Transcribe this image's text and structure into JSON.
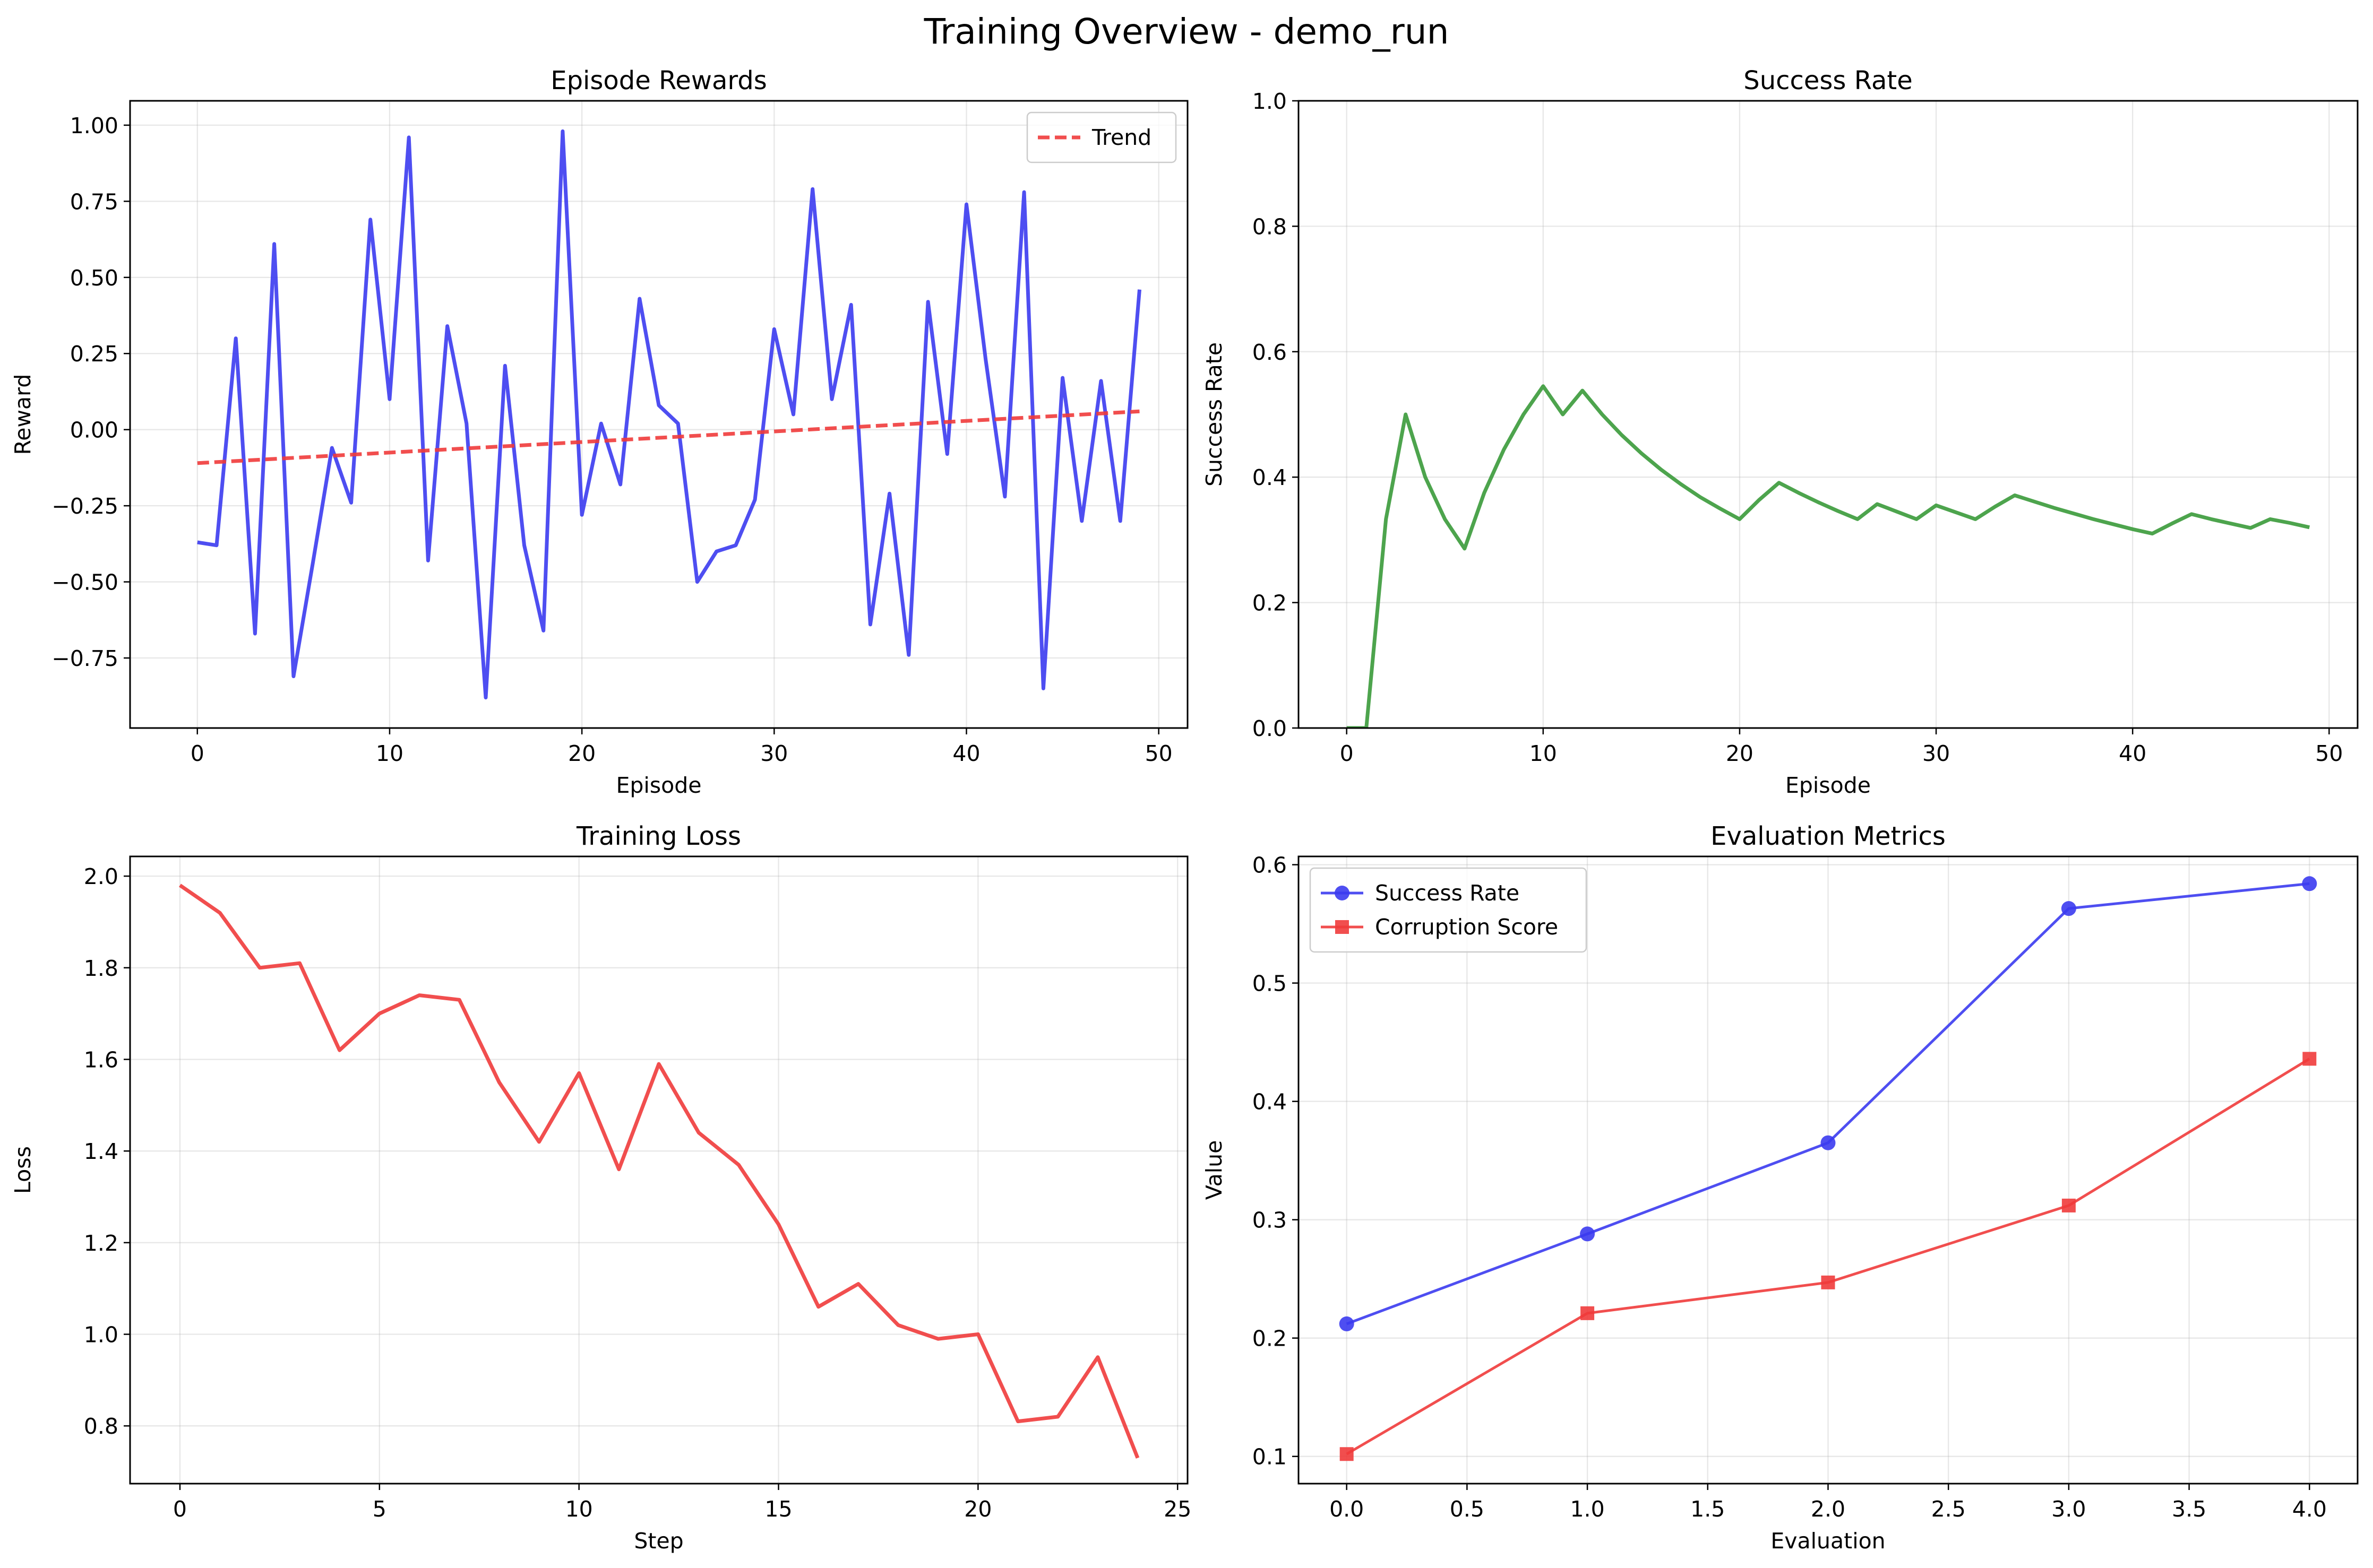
{
  "figure": {
    "title": "Training Overview - demo_run"
  },
  "chart_data": [
    {
      "type": "line",
      "title": "Episode Rewards",
      "xlabel": "Episode",
      "ylabel": "Reward",
      "xlim": [
        -3.5,
        51.5
      ],
      "ylim": [
        -0.98,
        1.08
      ],
      "xticks": [
        0,
        10,
        20,
        30,
        40,
        50
      ],
      "yticks": [
        -0.75,
        -0.5,
        -0.25,
        0.0,
        0.25,
        0.5,
        0.75,
        1.0
      ],
      "xtick_labels": [
        "0",
        "10",
        "20",
        "30",
        "40",
        "50"
      ],
      "ytick_labels": [
        "−0.75",
        "−0.50",
        "−0.25",
        "0.00",
        "0.25",
        "0.50",
        "0.75",
        "1.00"
      ],
      "grid": true,
      "legend": {
        "position": "upper-right",
        "entries": [
          "Trend"
        ]
      },
      "series": [
        {
          "color": "#3b3bf0",
          "style": "solid",
          "marker": "none",
          "x": [
            0,
            1,
            2,
            3,
            4,
            5,
            6,
            7,
            8,
            9,
            10,
            11,
            12,
            13,
            14,
            15,
            16,
            17,
            18,
            19,
            20,
            21,
            22,
            23,
            24,
            25,
            26,
            27,
            28,
            29,
            30,
            31,
            32,
            33,
            34,
            35,
            36,
            37,
            38,
            39,
            40,
            41,
            42,
            43,
            44,
            45,
            46,
            47,
            48,
            49
          ],
          "y": [
            -0.37,
            -0.38,
            0.3,
            -0.67,
            0.61,
            -0.81,
            -0.44,
            -0.06,
            -0.24,
            0.69,
            0.1,
            0.96,
            -0.43,
            0.34,
            0.02,
            -0.88,
            0.21,
            -0.38,
            -0.66,
            0.98,
            -0.28,
            0.02,
            -0.18,
            0.43,
            0.08,
            0.02,
            -0.5,
            -0.4,
            -0.38,
            -0.23,
            0.33,
            0.05,
            0.79,
            0.1,
            0.41,
            -0.64,
            -0.21,
            -0.74,
            0.42,
            -0.08,
            0.74,
            0.23,
            -0.22,
            0.78,
            -0.85,
            0.17,
            -0.3,
            0.16,
            -0.3,
            0.46
          ]
        },
        {
          "name": "Trend",
          "color": "#f03b3b",
          "style": "dashed",
          "marker": "none",
          "x": [
            0,
            49
          ],
          "y": [
            -0.11,
            0.06
          ]
        }
      ]
    },
    {
      "type": "line",
      "title": "Success Rate",
      "xlabel": "Episode",
      "ylabel": "Success Rate",
      "xlim": [
        -2.45,
        51.45
      ],
      "ylim": [
        0,
        1.0
      ],
      "xticks": [
        0,
        10,
        20,
        30,
        40,
        50
      ],
      "yticks": [
        0.0,
        0.2,
        0.4,
        0.6,
        0.8,
        1.0
      ],
      "xtick_labels": [
        "0",
        "10",
        "20",
        "30",
        "40",
        "50"
      ],
      "ytick_labels": [
        "0.0",
        "0.2",
        "0.4",
        "0.6",
        "0.8",
        "1.0"
      ],
      "grid": true,
      "series": [
        {
          "color": "#3a9a3a",
          "style": "solid",
          "marker": "none",
          "x": [
            0,
            1,
            2,
            3,
            4,
            5,
            6,
            7,
            8,
            9,
            10,
            11,
            12,
            13,
            14,
            15,
            16,
            17,
            18,
            19,
            20,
            21,
            22,
            23,
            24,
            25,
            26,
            27,
            28,
            29,
            30,
            31,
            32,
            33,
            34,
            35,
            36,
            37,
            38,
            39,
            40,
            41,
            42,
            43,
            44,
            45,
            46,
            47,
            48,
            49
          ],
          "y": [
            0.0,
            0.0,
            0.333,
            0.5,
            0.4,
            0.333,
            0.286,
            0.375,
            0.444,
            0.5,
            0.545,
            0.5,
            0.538,
            0.5,
            0.467,
            0.438,
            0.412,
            0.389,
            0.368,
            0.35,
            0.333,
            0.364,
            0.391,
            0.375,
            0.36,
            0.346,
            0.333,
            0.357,
            0.345,
            0.333,
            0.355,
            0.344,
            0.333,
            0.353,
            0.371,
            0.361,
            0.351,
            0.342,
            0.333,
            0.325,
            0.317,
            0.31,
            0.326,
            0.341,
            0.333,
            0.326,
            0.319,
            0.333,
            0.327,
            0.32
          ]
        }
      ]
    },
    {
      "type": "line",
      "title": "Training Loss",
      "xlabel": "Step",
      "ylabel": "Loss",
      "xlim": [
        -1.25,
        25.25
      ],
      "ylim": [
        0.674,
        2.043
      ],
      "xticks": [
        0,
        5,
        10,
        15,
        20,
        25
      ],
      "yticks": [
        0.8,
        1.0,
        1.2,
        1.4,
        1.6,
        1.8,
        2.0
      ],
      "xtick_labels": [
        "0",
        "5",
        "10",
        "15",
        "20",
        "25"
      ],
      "ytick_labels": [
        "0.8",
        "1.0",
        "1.2",
        "1.4",
        "1.6",
        "1.8",
        "2.0"
      ],
      "grid": true,
      "series": [
        {
          "color": "#f03b3b",
          "style": "solid",
          "marker": "none",
          "x": [
            0,
            1,
            2,
            3,
            4,
            5,
            6,
            7,
            8,
            9,
            10,
            11,
            12,
            13,
            14,
            15,
            16,
            17,
            18,
            19,
            20,
            21,
            22,
            23,
            24
          ],
          "y": [
            1.98,
            1.92,
            1.8,
            1.81,
            1.62,
            1.7,
            1.74,
            1.73,
            1.55,
            1.42,
            1.57,
            1.36,
            1.59,
            1.44,
            1.37,
            1.24,
            1.06,
            1.11,
            1.02,
            0.99,
            1.0,
            0.81,
            0.82,
            0.95,
            0.73
          ]
        }
      ]
    },
    {
      "type": "line",
      "title": "Evaluation Metrics",
      "xlabel": "Evaluation",
      "ylabel": "Value",
      "xlim": [
        -0.2,
        4.2
      ],
      "ylim": [
        0.077,
        0.607
      ],
      "xticks": [
        0.0,
        0.5,
        1.0,
        1.5,
        2.0,
        2.5,
        3.0,
        3.5,
        4.0
      ],
      "yticks": [
        0.1,
        0.2,
        0.3,
        0.4,
        0.5,
        0.6
      ],
      "xtick_labels": [
        "0.0",
        "0.5",
        "1.0",
        "1.5",
        "2.0",
        "2.5",
        "3.0",
        "3.5",
        "4.0"
      ],
      "ytick_labels": [
        "0.1",
        "0.2",
        "0.3",
        "0.4",
        "0.5",
        "0.6"
      ],
      "grid": true,
      "legend": {
        "position": "upper-left",
        "entries": [
          "Success Rate",
          "Corruption Score"
        ]
      },
      "series": [
        {
          "name": "Success Rate",
          "color": "#3b3bf0",
          "style": "solid",
          "marker": "circle",
          "x": [
            0,
            1,
            2,
            3,
            4
          ],
          "y": [
            0.212,
            0.288,
            0.365,
            0.563,
            0.584
          ]
        },
        {
          "name": "Corruption Score",
          "color": "#f03b3b",
          "style": "solid",
          "marker": "square",
          "x": [
            0,
            1,
            2,
            3,
            4
          ],
          "y": [
            0.102,
            0.221,
            0.247,
            0.312,
            0.436
          ]
        }
      ]
    }
  ]
}
